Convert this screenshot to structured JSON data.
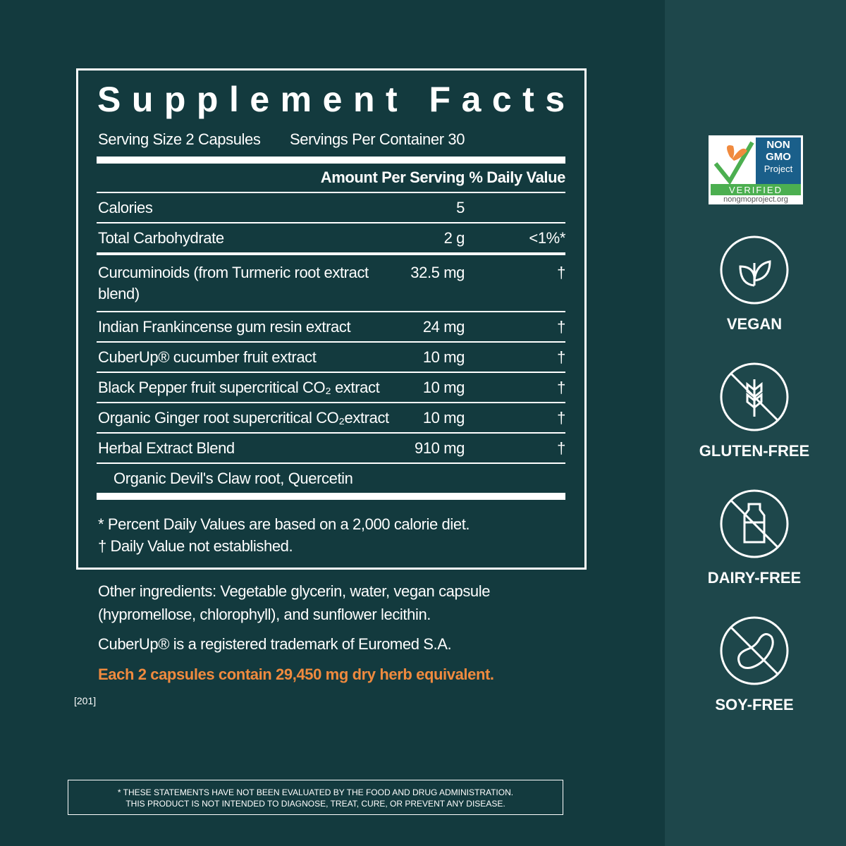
{
  "header": {
    "title": "Supplement Facts",
    "serving_size": "Serving Size 2 Capsules",
    "servings_per_container": "Servings Per Container 30"
  },
  "columns": {
    "amount": "Amount Per Serving",
    "daily_value": "% Daily Value"
  },
  "rows": [
    {
      "name": "Calories",
      "amount": "5"
    },
    {
      "name": "Total Carbohydrate",
      "amount": "2 g",
      "daily_value": "<1%*"
    },
    {
      "name": "Curcuminoids (from Turmeric root extract blend)",
      "amount": "32.5 mg",
      "daily_value": "†"
    },
    {
      "name": "Indian Frankincense gum resin extract",
      "amount": "24 mg",
      "daily_value": "†"
    },
    {
      "name": "CuberUp® cucumber fruit extract",
      "amount": "10 mg",
      "daily_value": "†"
    },
    {
      "name": "Black Pepper fruit supercritical CO₂ extract",
      "amount": "10 mg",
      "daily_value": "†"
    },
    {
      "name": "Organic Ginger root supercritical CO₂extract",
      "amount": "10 mg",
      "daily_value": "†"
    },
    {
      "name": "Herbal Extract Blend",
      "amount": "910 mg",
      "daily_value": "†",
      "note": "Organic Devil's Claw root, Quercetin"
    }
  ],
  "footnotes": [
    "* Percent Daily Values are based on a 2,000 calorie diet.",
    "† Daily Value not established."
  ],
  "other_ingredients": "Other ingredients: Vegetable glycerin, water, vegan capsule (hypromellose, chlorophyll), and sunflower lecithin.",
  "trademark": "CuberUp® is a registered trademark of Euromed S.A.",
  "highlight": "Each 2 capsules contain 29,450 mg dry herb equivalent.",
  "code": "[201]",
  "disclaimer": [
    "* THESE STATEMENTS HAVE NOT BEEN EVALUATED BY THE FOOD AND DRUG ADMINISTRATION.",
    "THIS PRODUCT IS NOT INTENDED TO DIAGNOSE, TREAT, CURE, OR PREVENT ANY DISEASE."
  ],
  "non_gmo": {
    "line1": "NON",
    "line2": "GMO",
    "line3": "Project",
    "verified": "VERIFIED",
    "url": "nongmoproject.org"
  },
  "badges": [
    "VEGAN",
    "GLUTEN-FREE",
    "DAIRY-FREE",
    "SOY-FREE"
  ]
}
